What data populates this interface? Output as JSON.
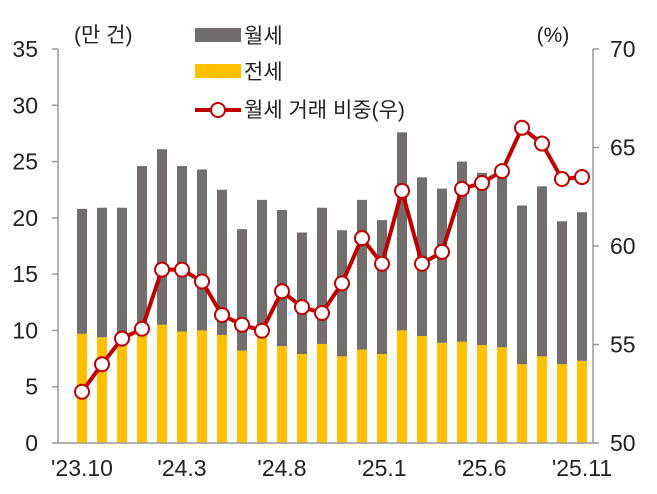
{
  "chart_data": {
    "type": "bar",
    "stacked": true,
    "left_axis": {
      "unit_label": "(만 건)",
      "ylim": [
        0,
        35
      ],
      "ticks": [
        "0",
        "5",
        "10",
        "15",
        "20",
        "25",
        "30",
        "35"
      ]
    },
    "right_axis": {
      "unit_label": "(%)",
      "ylim": [
        50,
        70
      ],
      "ticks": [
        "50",
        "55",
        "60",
        "65",
        "70"
      ]
    },
    "x_tick_labels": [
      {
        "index": 0,
        "label": "'23.10"
      },
      {
        "index": 5,
        "label": "'24.3"
      },
      {
        "index": 10,
        "label": "'24.8"
      },
      {
        "index": 15,
        "label": "'25.1"
      },
      {
        "index": 20,
        "label": "'25.6"
      },
      {
        "index": 25,
        "label": "'25.11"
      }
    ],
    "categories": [
      "23.10",
      "23.11",
      "23.12",
      "24.1",
      "24.2",
      "24.3",
      "24.4",
      "24.5",
      "24.6",
      "24.7",
      "24.8",
      "24.9",
      "24.10",
      "24.11",
      "24.12",
      "25.1",
      "25.2",
      "25.3",
      "25.4",
      "25.5",
      "25.6",
      "25.7",
      "25.8",
      "25.9",
      "25.10",
      "25.11"
    ],
    "series": [
      {
        "name": "전세",
        "type": "bar",
        "axis": "left",
        "color": "#FFC000",
        "values": [
          9.7,
          9.4,
          9.5,
          9.9,
          10.5,
          9.9,
          10.0,
          9.6,
          8.2,
          9.5,
          8.6,
          7.9,
          8.8,
          7.7,
          8.3,
          7.9,
          10.0,
          9.5,
          8.9,
          9.0,
          8.7,
          8.5,
          7.0,
          7.7,
          7.0,
          7.3
        ]
      },
      {
        "name": "월세",
        "type": "bar",
        "axis": "left",
        "color": "#736E6E",
        "values": [
          11.1,
          11.5,
          11.4,
          14.7,
          15.6,
          14.7,
          14.3,
          12.9,
          10.8,
          12.1,
          12.1,
          10.8,
          12.1,
          11.2,
          13.3,
          11.9,
          17.6,
          14.1,
          13.7,
          16.0,
          15.3,
          15.6,
          14.1,
          15.1,
          12.7,
          13.2
        ]
      },
      {
        "name": "월세 거래 비중(우)",
        "type": "line",
        "axis": "right",
        "color": "#C00000",
        "values": [
          52.6,
          54.0,
          55.3,
          55.8,
          58.8,
          58.8,
          58.2,
          56.5,
          56.0,
          55.7,
          57.7,
          56.9,
          56.6,
          58.1,
          60.4,
          59.1,
          62.8,
          59.1,
          59.7,
          62.9,
          63.2,
          63.8,
          66.0,
          65.2,
          63.4,
          63.5
        ]
      }
    ],
    "legend": {
      "placement": "top-center",
      "items": [
        "월세",
        "전세",
        "월세 거래 비중(우)"
      ]
    },
    "grid": false
  }
}
